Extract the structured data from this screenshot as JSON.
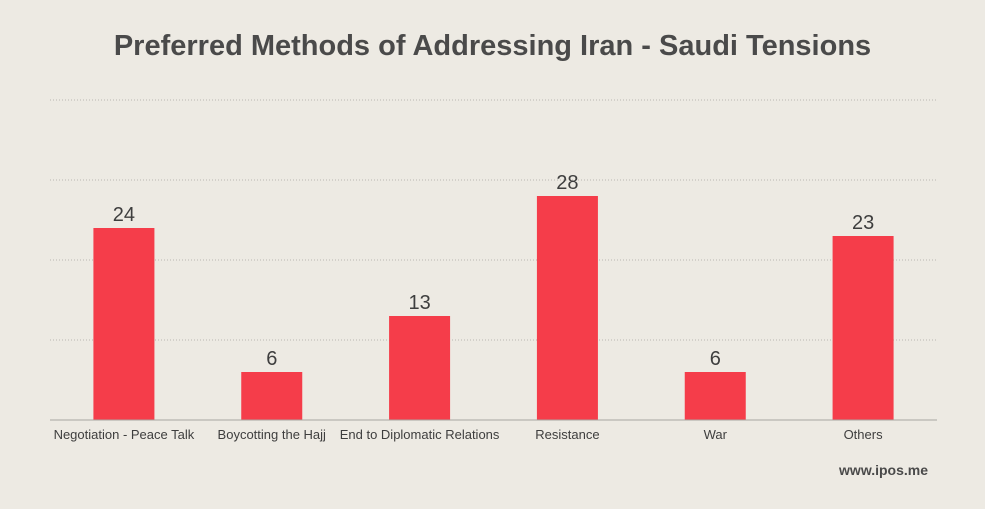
{
  "chart_data": {
    "type": "bar",
    "title": "Preferred Methods of Addressing Iran - Saudi Tensions",
    "categories": [
      "Negotiation - Peace Talk",
      "Boycotting the Hajj",
      "End to Diplomatic Relations",
      "Resistance",
      "War",
      "Others"
    ],
    "values": [
      24,
      6,
      13,
      28,
      6,
      23
    ],
    "data_labels": [
      "24",
      "6",
      "13",
      "28",
      "6",
      "23"
    ],
    "xlabel": "",
    "ylabel": "",
    "ylim": [
      0,
      40
    ],
    "grid": true,
    "bar_color": "#f53d4a",
    "grid_color": "#b9b6b0"
  },
  "source": "www.ipos.me"
}
